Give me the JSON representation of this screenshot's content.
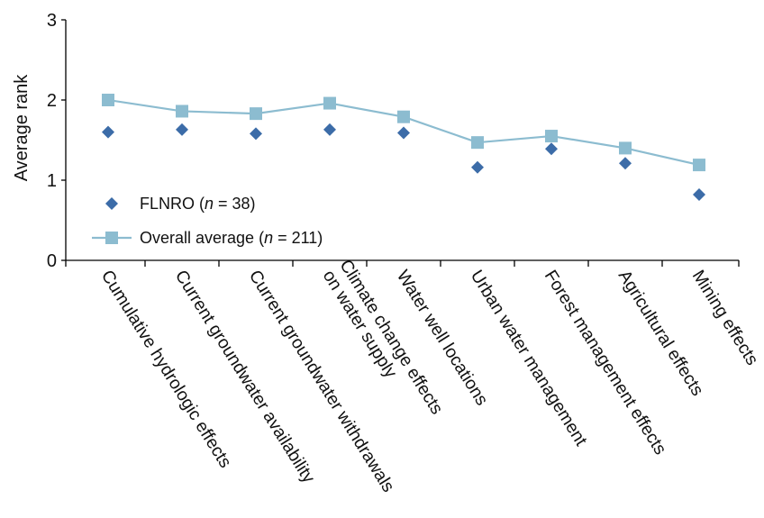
{
  "chart_data": {
    "type": "line",
    "categories": [
      [
        "Cumulative hydrologic effects"
      ],
      [
        "Current groundwater availability"
      ],
      [
        "Current groundwater withdrawals"
      ],
      [
        "Climate change effects",
        "on water supply"
      ],
      [
        "Water well locations"
      ],
      [
        "Urban water management"
      ],
      [
        "Forest management effects"
      ],
      [
        "Agricultural effects"
      ],
      [
        "Mining effects"
      ]
    ],
    "series": [
      {
        "name": "FLNRO (n = 38)",
        "name_parts": [
          "FLNRO (",
          "n",
          " = 38)"
        ],
        "marker": "diamond",
        "line": false,
        "color": "#3C6CA8",
        "values": [
          1.6,
          1.63,
          1.58,
          1.63,
          1.59,
          1.16,
          1.39,
          1.21,
          0.82
        ]
      },
      {
        "name": "Overall average (n = 211)",
        "name_parts": [
          "Overall average (",
          "n",
          " = 211)"
        ],
        "marker": "square",
        "line": true,
        "color": "#8CBCD0",
        "values": [
          2.0,
          1.86,
          1.83,
          1.96,
          1.79,
          1.47,
          1.55,
          1.4,
          1.19
        ]
      }
    ],
    "ylabel": "Average rank",
    "xlabel": "",
    "ylim": [
      0,
      3
    ],
    "yticks": [
      "0",
      "1",
      "2",
      "3"
    ],
    "grid": false,
    "legend_position": "bottom-left"
  }
}
